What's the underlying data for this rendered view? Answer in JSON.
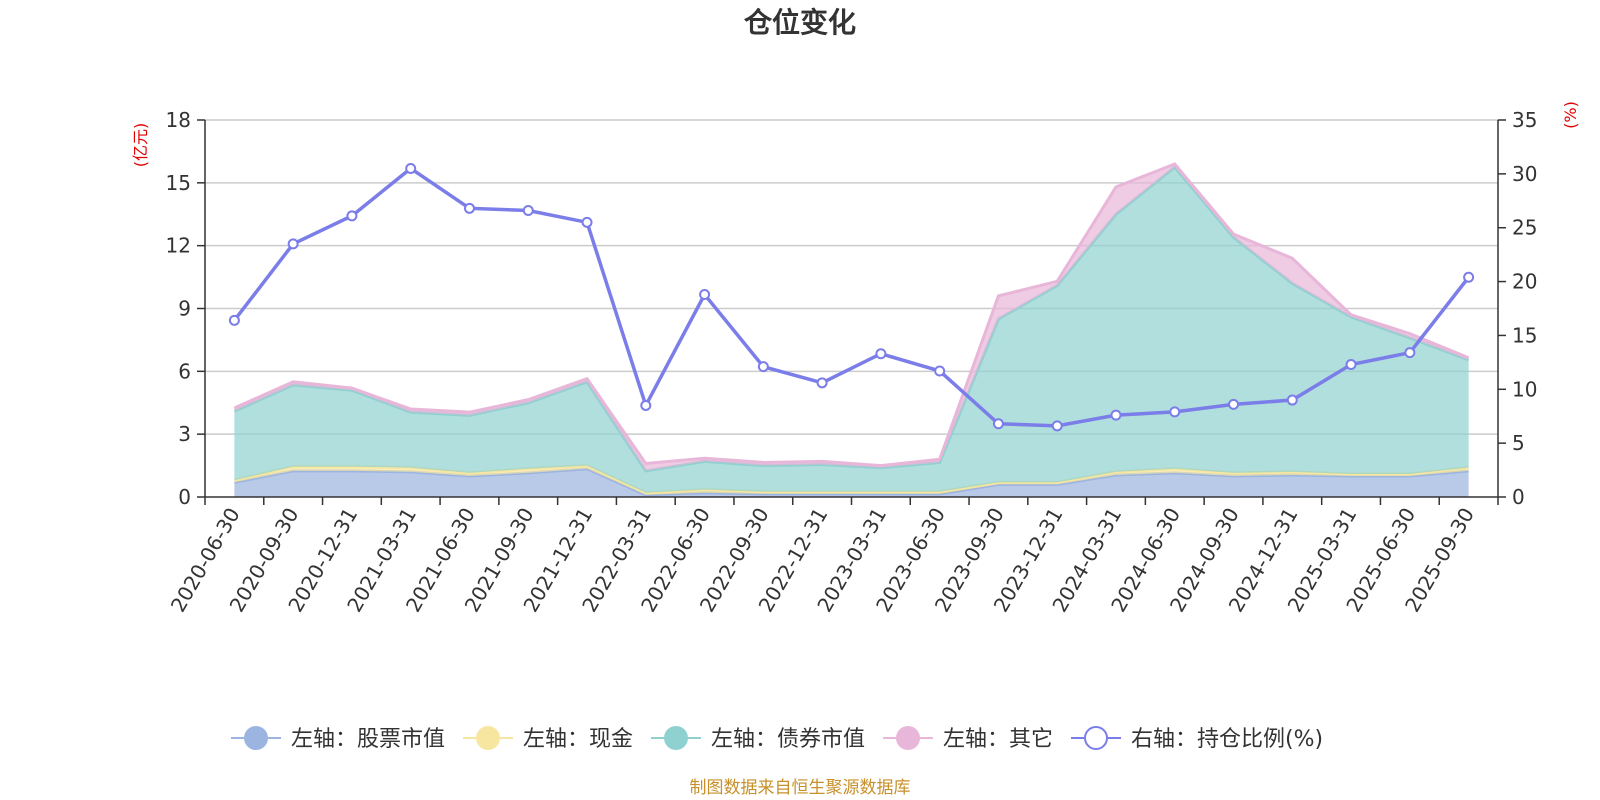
{
  "chart_data": {
    "type": "area",
    "title": "仓位变化",
    "y_left_unit": "(亿元)",
    "y_right_unit": "(%)",
    "y_left_ticks": [
      "0",
      "3",
      "6",
      "9",
      "12",
      "15",
      "18"
    ],
    "y_right_ticks": [
      "0",
      "5",
      "10",
      "15",
      "20",
      "25",
      "30",
      "35"
    ],
    "y_left_range": [
      0,
      18
    ],
    "y_right_range": [
      0,
      35
    ],
    "categories": [
      "2020-06-30",
      "2020-09-30",
      "2020-12-31",
      "2021-03-31",
      "2021-06-30",
      "2021-09-30",
      "2021-12-31",
      "2022-03-31",
      "2022-06-30",
      "2022-09-30",
      "2022-12-31",
      "2023-03-31",
      "2023-06-30",
      "2023-09-30",
      "2023-12-31",
      "2024-03-31",
      "2024-06-30",
      "2024-09-30",
      "2024-12-31",
      "2025-03-31",
      "2025-06-30",
      "2025-09-30"
    ],
    "stacked_series": [
      {
        "name": "左轴：股票市值",
        "axis": "left",
        "color": "#9bb4e0",
        "values": [
          0.7,
          1.25,
          1.25,
          1.2,
          1.0,
          1.15,
          1.35,
          0.1,
          0.2,
          0.15,
          0.15,
          0.15,
          0.15,
          0.6,
          0.6,
          1.05,
          1.15,
          1.0,
          1.05,
          1.0,
          1.0,
          1.25
        ]
      },
      {
        "name": "左轴：现金",
        "axis": "left",
        "color": "#f7e6a0",
        "values": [
          0.1,
          0.2,
          0.2,
          0.2,
          0.15,
          0.2,
          0.15,
          0.1,
          0.15,
          0.1,
          0.1,
          0.1,
          0.1,
          0.1,
          0.1,
          0.15,
          0.2,
          0.15,
          0.15,
          0.1,
          0.1,
          0.15
        ]
      },
      {
        "name": "左轴：债券市值",
        "axis": "left",
        "color": "#8ed1d0",
        "values": [
          3.3,
          3.9,
          3.65,
          2.65,
          2.75,
          3.15,
          4.0,
          1.05,
          1.35,
          1.25,
          1.3,
          1.15,
          1.4,
          7.8,
          9.4,
          12.3,
          14.4,
          11.25,
          9.0,
          7.5,
          6.5,
          5.15
        ]
      },
      {
        "name": "左轴：其它",
        "axis": "left",
        "color": "#e8b6d9",
        "values": [
          0.15,
          0.15,
          0.1,
          0.15,
          0.15,
          0.15,
          0.15,
          0.35,
          0.15,
          0.15,
          0.15,
          0.1,
          0.15,
          1.1,
          0.2,
          1.3,
          0.15,
          0.15,
          1.2,
          0.1,
          0.2,
          0.1
        ]
      }
    ],
    "line_series": {
      "name": "右轴：持仓比例(%)",
      "axis": "right",
      "color": "#7b7de8",
      "values": [
        16.4,
        23.5,
        26.1,
        30.5,
        26.8,
        26.6,
        25.5,
        8.5,
        18.8,
        12.1,
        10.6,
        13.3,
        11.7,
        6.8,
        6.6,
        7.6,
        7.9,
        8.6,
        9.0,
        12.3,
        13.4,
        20.4
      ]
    },
    "legend": [
      {
        "label": "左轴：股票市值",
        "color": "#9bb4e0",
        "kind": "filled"
      },
      {
        "label": "左轴：现金",
        "color": "#f7e6a0",
        "kind": "filled"
      },
      {
        "label": "左轴：债券市值",
        "color": "#8ed1d0",
        "kind": "filled"
      },
      {
        "label": "左轴：其它",
        "color": "#e8b6d9",
        "kind": "filled"
      },
      {
        "label": "右轴：持仓比例(%)",
        "color": "#7b7de8",
        "kind": "hollow"
      }
    ],
    "source": "制图数据来自恒生聚源数据库"
  }
}
